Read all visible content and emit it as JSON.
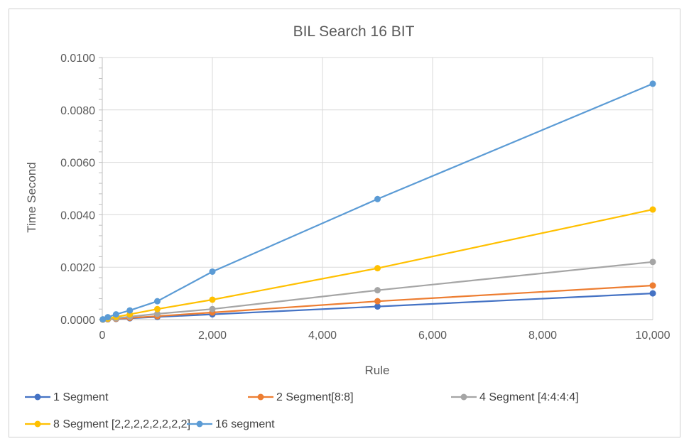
{
  "chart_data": {
    "type": "line",
    "title": "BIL Search 16 BIT",
    "xlabel": "Rule",
    "ylabel": "Time Second",
    "xlim": [
      0,
      10000
    ],
    "ylim": [
      0,
      0.01
    ],
    "x_ticks": [
      "0",
      "2,000",
      "4,000",
      "6,000",
      "8,000",
      "10,000"
    ],
    "y_ticks": [
      "0.0000",
      "0.0020",
      "0.0040",
      "0.0060",
      "0.0080",
      "0.0100"
    ],
    "grid": true,
    "legend_position": "bottom",
    "x": [
      10,
      100,
      250,
      500,
      1000,
      2000,
      5000,
      10000
    ],
    "series": [
      {
        "name": "1 Segment",
        "color": "#4472C4",
        "values": [
          1e-06,
          1e-05,
          2.5e-05,
          5e-05,
          0.0001,
          0.0002,
          0.0005,
          0.001
        ]
      },
      {
        "name": "2 Segment[8:8]",
        "color": "#ED7D31",
        "values": [
          1.3e-06,
          1.3e-05,
          3.3e-05,
          6.6e-05,
          0.00013,
          0.00027,
          0.0007,
          0.0013
        ]
      },
      {
        "name": "4 Segment [4:4:4:4]",
        "color": "#A5A5A5",
        "values": [
          2e-06,
          2e-05,
          5e-05,
          0.00011,
          0.00022,
          0.0004,
          0.00112,
          0.0022
        ]
      },
      {
        "name": "8 Segment [2,2,2,2,2,2,2,2]",
        "color": "#FFC000",
        "values": [
          5e-06,
          4e-05,
          0.0001,
          0.0002,
          0.0004,
          0.00076,
          0.00196,
          0.0042
        ]
      },
      {
        "name": "16 segment",
        "color": "#5B9BD5",
        "values": [
          1e-05,
          9e-05,
          0.0002,
          0.00035,
          0.0007,
          0.00183,
          0.0046,
          0.009
        ]
      }
    ]
  }
}
